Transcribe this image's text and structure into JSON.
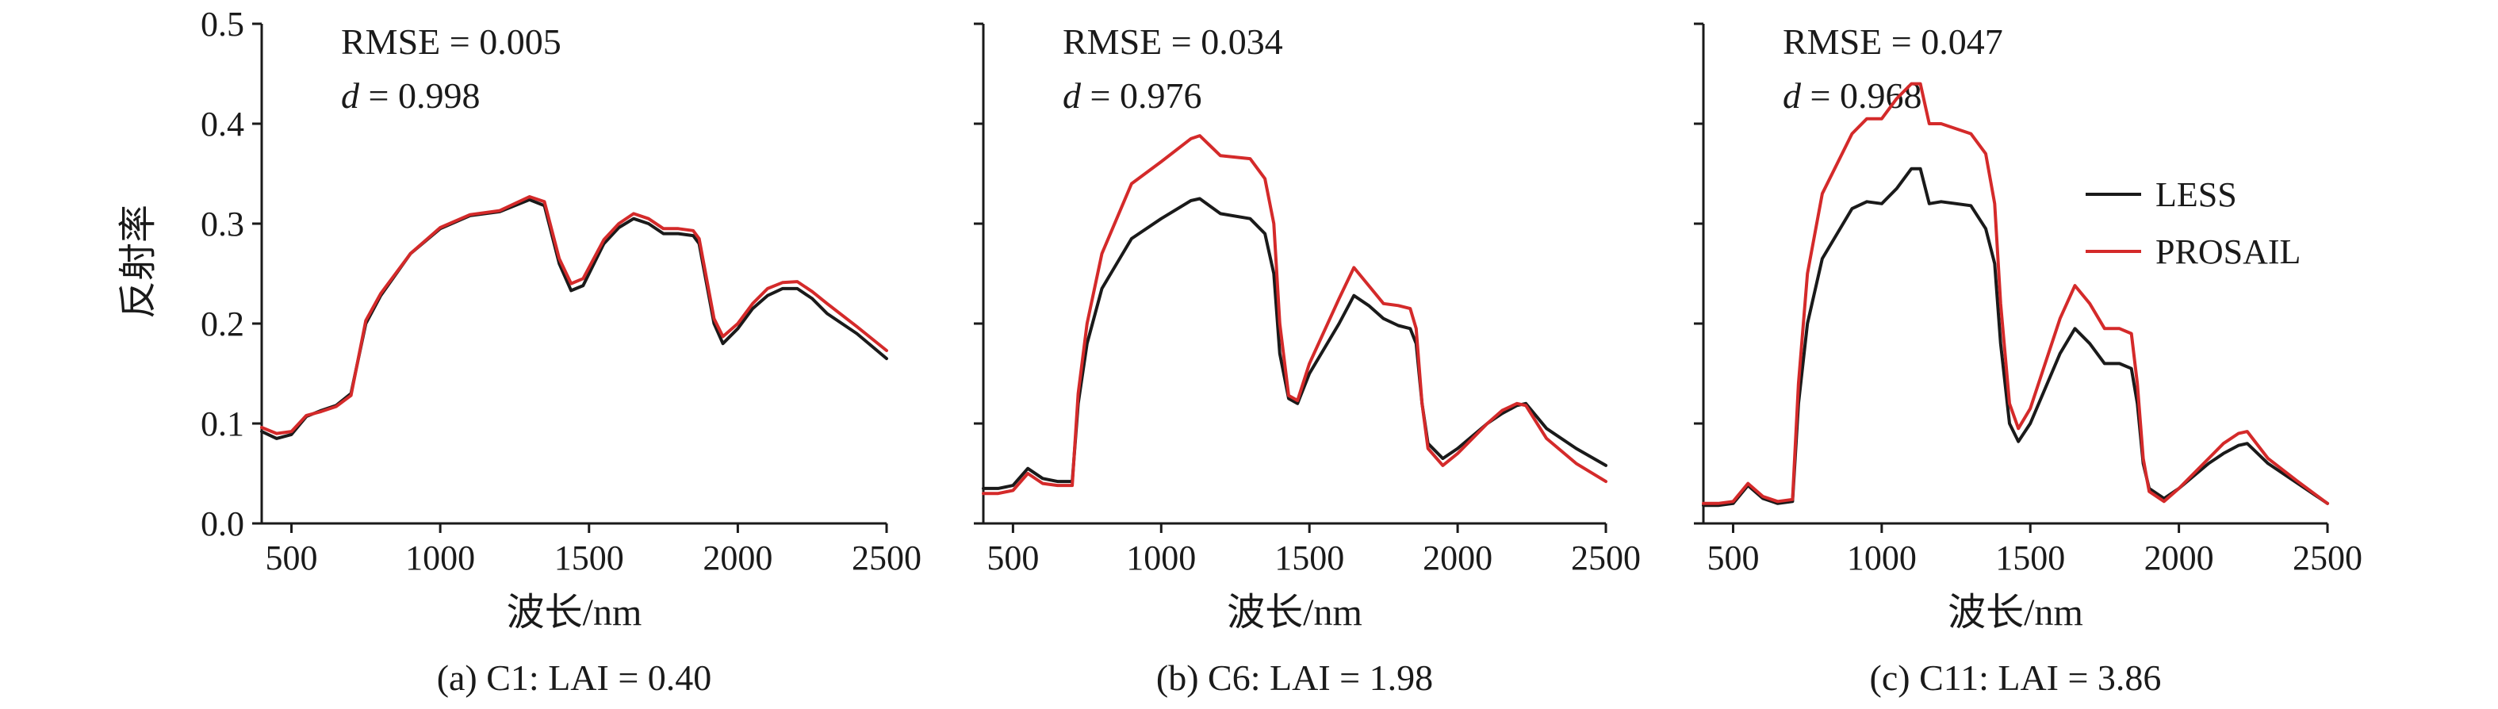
{
  "figure": {
    "y_axis_label": "反射率",
    "x_axis_label": "波长/nm"
  },
  "legend": {
    "items": [
      {
        "label": "LESS",
        "color": "#1a1a1a"
      },
      {
        "label": "PROSAIL",
        "color": "#d42a2a"
      }
    ]
  },
  "chart_data": [
    {
      "type": "line",
      "caption": "(a) C1: LAI = 0.40",
      "stats": {
        "rmse_label": "RMSE = 0.005",
        "d_symbol": "d",
        "d_value": " = 0.998"
      },
      "xlabel": "波长/nm",
      "ylabel": "反射率",
      "xlim": [
        400,
        2500
      ],
      "ylim": [
        0,
        0.5
      ],
      "xticks": [
        500,
        1000,
        1500,
        2000,
        2500
      ],
      "yticks": [
        0.0,
        0.1,
        0.2,
        0.3,
        0.4,
        0.5
      ],
      "ytick_labels": [
        "0.0",
        "0.1",
        "0.2",
        "0.3",
        "0.4",
        "0.5"
      ],
      "show_ytick_labels": true,
      "legend": false,
      "series": [
        {
          "name": "LESS",
          "color": "#1a1a1a",
          "x": [
            400,
            450,
            500,
            550,
            600,
            650,
            700,
            750,
            800,
            900,
            1000,
            1100,
            1200,
            1300,
            1350,
            1400,
            1440,
            1480,
            1550,
            1600,
            1650,
            1700,
            1750,
            1800,
            1850,
            1870,
            1920,
            1950,
            2000,
            2050,
            2100,
            2150,
            2200,
            2250,
            2300,
            2400,
            2500
          ],
          "y": [
            0.092,
            0.085,
            0.089,
            0.107,
            0.113,
            0.118,
            0.13,
            0.2,
            0.228,
            0.27,
            0.295,
            0.308,
            0.312,
            0.324,
            0.318,
            0.26,
            0.233,
            0.238,
            0.28,
            0.296,
            0.305,
            0.3,
            0.29,
            0.29,
            0.288,
            0.28,
            0.2,
            0.18,
            0.195,
            0.215,
            0.228,
            0.235,
            0.235,
            0.225,
            0.21,
            0.19,
            0.165
          ]
        },
        {
          "name": "PROSAIL",
          "color": "#d42a2a",
          "x": [
            400,
            450,
            500,
            550,
            600,
            650,
            700,
            750,
            800,
            900,
            1000,
            1100,
            1200,
            1300,
            1350,
            1400,
            1440,
            1480,
            1550,
            1600,
            1650,
            1700,
            1750,
            1800,
            1850,
            1870,
            1920,
            1950,
            2000,
            2050,
            2100,
            2150,
            2200,
            2250,
            2300,
            2400,
            2500
          ],
          "y": [
            0.096,
            0.09,
            0.092,
            0.108,
            0.112,
            0.117,
            0.128,
            0.203,
            0.23,
            0.27,
            0.296,
            0.309,
            0.313,
            0.327,
            0.322,
            0.265,
            0.24,
            0.245,
            0.284,
            0.3,
            0.31,
            0.305,
            0.295,
            0.295,
            0.293,
            0.285,
            0.205,
            0.187,
            0.2,
            0.22,
            0.235,
            0.241,
            0.242,
            0.232,
            0.22,
            0.197,
            0.173
          ]
        }
      ]
    },
    {
      "type": "line",
      "caption": "(b) C6: LAI = 1.98",
      "stats": {
        "rmse_label": "RMSE = 0.034",
        "d_symbol": "d",
        "d_value": " = 0.976"
      },
      "xlabel": "波长/nm",
      "xlim": [
        400,
        2500
      ],
      "ylim": [
        0,
        0.5
      ],
      "xticks": [
        500,
        1000,
        1500,
        2000,
        2500
      ],
      "yticks": [
        0.0,
        0.1,
        0.2,
        0.3,
        0.4,
        0.5
      ],
      "show_ytick_labels": false,
      "legend": false,
      "series": [
        {
          "name": "LESS",
          "color": "#1a1a1a",
          "x": [
            400,
            450,
            500,
            550,
            600,
            650,
            700,
            720,
            750,
            800,
            900,
            1000,
            1100,
            1130,
            1200,
            1300,
            1350,
            1380,
            1400,
            1430,
            1460,
            1500,
            1600,
            1650,
            1700,
            1750,
            1800,
            1840,
            1860,
            1880,
            1900,
            1950,
            2000,
            2100,
            2150,
            2200,
            2230,
            2300,
            2400,
            2500
          ],
          "y": [
            0.035,
            0.035,
            0.038,
            0.055,
            0.045,
            0.042,
            0.042,
            0.12,
            0.18,
            0.235,
            0.285,
            0.305,
            0.323,
            0.325,
            0.31,
            0.305,
            0.29,
            0.25,
            0.17,
            0.125,
            0.12,
            0.15,
            0.2,
            0.228,
            0.218,
            0.205,
            0.198,
            0.195,
            0.18,
            0.12,
            0.08,
            0.065,
            0.075,
            0.1,
            0.11,
            0.118,
            0.12,
            0.095,
            0.075,
            0.058
          ]
        },
        {
          "name": "PROSAIL",
          "color": "#d42a2a",
          "x": [
            400,
            450,
            500,
            550,
            600,
            650,
            700,
            720,
            750,
            800,
            900,
            1000,
            1100,
            1130,
            1200,
            1300,
            1350,
            1380,
            1400,
            1430,
            1460,
            1500,
            1600,
            1650,
            1700,
            1750,
            1800,
            1840,
            1860,
            1880,
            1900,
            1950,
            2000,
            2100,
            2150,
            2200,
            2230,
            2300,
            2400,
            2500
          ],
          "y": [
            0.03,
            0.03,
            0.033,
            0.05,
            0.04,
            0.038,
            0.038,
            0.13,
            0.2,
            0.27,
            0.34,
            0.362,
            0.385,
            0.388,
            0.368,
            0.365,
            0.345,
            0.3,
            0.2,
            0.128,
            0.123,
            0.16,
            0.225,
            0.256,
            0.238,
            0.22,
            0.218,
            0.215,
            0.195,
            0.12,
            0.075,
            0.058,
            0.07,
            0.1,
            0.113,
            0.12,
            0.118,
            0.085,
            0.06,
            0.042
          ]
        }
      ]
    },
    {
      "type": "line",
      "caption": "(c) C11: LAI = 3.86",
      "stats": {
        "rmse_label": "RMSE = 0.047",
        "d_symbol": "d",
        "d_value": " = 0.968"
      },
      "xlabel": "波长/nm",
      "xlim": [
        400,
        2500
      ],
      "ylim": [
        0,
        0.5
      ],
      "xticks": [
        500,
        1000,
        1500,
        2000,
        2500
      ],
      "yticks": [
        0.0,
        0.1,
        0.2,
        0.3,
        0.4,
        0.5
      ],
      "show_ytick_labels": false,
      "legend": true,
      "series": [
        {
          "name": "LESS",
          "color": "#1a1a1a",
          "x": [
            400,
            450,
            500,
            550,
            600,
            650,
            700,
            720,
            750,
            800,
            900,
            950,
            1000,
            1050,
            1100,
            1130,
            1160,
            1200,
            1300,
            1350,
            1380,
            1400,
            1430,
            1460,
            1500,
            1600,
            1650,
            1700,
            1750,
            1800,
            1840,
            1860,
            1880,
            1900,
            1950,
            2000,
            2100,
            2150,
            2200,
            2230,
            2300,
            2400,
            2500
          ],
          "y": [
            0.018,
            0.018,
            0.02,
            0.038,
            0.025,
            0.02,
            0.022,
            0.12,
            0.2,
            0.265,
            0.315,
            0.322,
            0.32,
            0.335,
            0.355,
            0.355,
            0.32,
            0.322,
            0.318,
            0.295,
            0.26,
            0.18,
            0.1,
            0.082,
            0.1,
            0.17,
            0.195,
            0.18,
            0.16,
            0.16,
            0.155,
            0.12,
            0.06,
            0.035,
            0.025,
            0.035,
            0.06,
            0.07,
            0.078,
            0.08,
            0.06,
            0.04,
            0.02
          ]
        },
        {
          "name": "PROSAIL",
          "color": "#d42a2a",
          "x": [
            400,
            450,
            500,
            550,
            600,
            650,
            700,
            720,
            750,
            800,
            900,
            950,
            1000,
            1050,
            1100,
            1130,
            1160,
            1200,
            1300,
            1350,
            1380,
            1400,
            1430,
            1460,
            1500,
            1600,
            1650,
            1700,
            1750,
            1800,
            1840,
            1860,
            1880,
            1900,
            1950,
            2000,
            2100,
            2150,
            2200,
            2230,
            2300,
            2400,
            2500
          ],
          "y": [
            0.02,
            0.02,
            0.022,
            0.04,
            0.027,
            0.022,
            0.024,
            0.14,
            0.25,
            0.33,
            0.39,
            0.405,
            0.405,
            0.425,
            0.44,
            0.44,
            0.4,
            0.4,
            0.39,
            0.37,
            0.32,
            0.22,
            0.12,
            0.095,
            0.115,
            0.205,
            0.238,
            0.22,
            0.195,
            0.195,
            0.19,
            0.14,
            0.065,
            0.032,
            0.022,
            0.035,
            0.065,
            0.08,
            0.09,
            0.092,
            0.065,
            0.042,
            0.02
          ]
        }
      ]
    }
  ]
}
